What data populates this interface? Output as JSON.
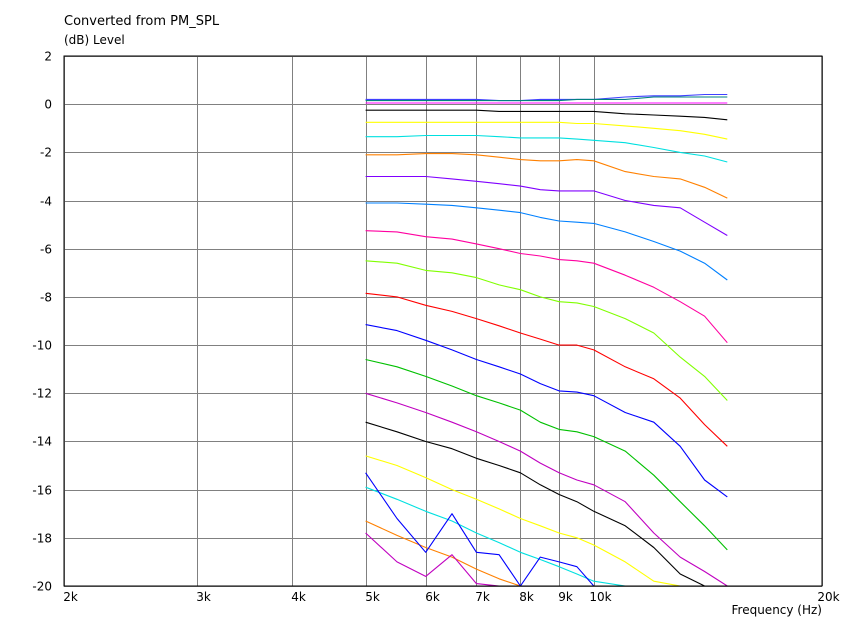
{
  "chart_data": {
    "type": "line",
    "title": "Converted from PM_SPL",
    "ylabel": "(dB)  Level",
    "xlabel": "Frequency  (Hz)",
    "x_scale": "log",
    "xlim": [
      2000,
      20000
    ],
    "ylim": [
      -20,
      2
    ],
    "grid": true,
    "legend": "none",
    "x_ticks": [
      2000,
      3000,
      4000,
      5000,
      6000,
      7000,
      8000,
      9000,
      10000,
      20000
    ],
    "x_tick_labels": [
      "2k",
      "3k",
      "4k",
      "5k",
      "6k",
      "7k",
      "8k",
      "9k",
      "10k",
      "20k"
    ],
    "y_ticks": [
      2,
      0,
      -2,
      -4,
      -6,
      -8,
      -10,
      -12,
      -14,
      -16,
      -18,
      -20
    ],
    "y_tick_labels": [
      "2",
      "0",
      "-2",
      "-4",
      "-6",
      "-8",
      "-10",
      "-12",
      "-14",
      "-16",
      "-18",
      "-20"
    ],
    "x": [
      5000,
      5500,
      6000,
      6500,
      7000,
      7500,
      8000,
      8500,
      9000,
      9500,
      10000,
      11000,
      12000,
      13000,
      14000,
      15000
    ],
    "series": [
      {
        "color": "#4040ff",
        "values": [
          0.2,
          0.2,
          0.2,
          0.2,
          0.2,
          0.15,
          0.15,
          0.2,
          0.2,
          0.2,
          0.2,
          0.3,
          0.35,
          0.35,
          0.4,
          0.4
        ]
      },
      {
        "color": "#008080",
        "values": [
          0.15,
          0.15,
          0.15,
          0.15,
          0.15,
          0.15,
          0.15,
          0.15,
          0.15,
          0.2,
          0.2,
          0.2,
          0.3,
          0.3,
          0.3,
          0.3
        ]
      },
      {
        "color": "#ff00ff",
        "values": [
          0.05,
          0.05,
          0.05,
          0.05,
          0.05,
          0.05,
          0.05,
          0.05,
          0.05,
          0.05,
          0.05,
          0.05,
          0.05,
          0.05,
          0.05,
          0.05
        ]
      },
      {
        "color": "#000000",
        "values": [
          -0.25,
          -0.25,
          -0.25,
          -0.25,
          -0.25,
          -0.3,
          -0.3,
          -0.3,
          -0.3,
          -0.3,
          -0.3,
          -0.4,
          -0.45,
          -0.5,
          -0.55,
          -0.65
        ]
      },
      {
        "color": "#ffff00",
        "values": [
          -0.75,
          -0.75,
          -0.75,
          -0.75,
          -0.75,
          -0.75,
          -0.75,
          -0.75,
          -0.75,
          -0.8,
          -0.8,
          -0.9,
          -1.0,
          -1.1,
          -1.25,
          -1.45
        ]
      },
      {
        "color": "#00e0e0",
        "values": [
          -1.35,
          -1.35,
          -1.3,
          -1.3,
          -1.3,
          -1.35,
          -1.4,
          -1.4,
          -1.4,
          -1.45,
          -1.5,
          -1.6,
          -1.8,
          -2.0,
          -2.15,
          -2.4
        ]
      },
      {
        "color": "#ff8000",
        "values": [
          -2.1,
          -2.1,
          -2.05,
          -2.05,
          -2.1,
          -2.2,
          -2.3,
          -2.35,
          -2.35,
          -2.3,
          -2.35,
          -2.8,
          -3.0,
          -3.1,
          -3.45,
          -3.9
        ]
      },
      {
        "color": "#8000ff",
        "values": [
          -3.0,
          -3.0,
          -3.0,
          -3.1,
          -3.2,
          -3.3,
          -3.4,
          -3.55,
          -3.6,
          -3.6,
          -3.6,
          -4.0,
          -4.2,
          -4.3,
          -4.9,
          -5.45
        ]
      },
      {
        "color": "#0080ff",
        "values": [
          -4.1,
          -4.1,
          -4.15,
          -4.2,
          -4.3,
          -4.4,
          -4.5,
          -4.7,
          -4.85,
          -4.9,
          -4.95,
          -5.3,
          -5.7,
          -6.1,
          -6.6,
          -7.3
        ]
      },
      {
        "color": "#ff00a0",
        "values": [
          -5.25,
          -5.3,
          -5.5,
          -5.6,
          -5.8,
          -6.0,
          -6.2,
          -6.3,
          -6.45,
          -6.5,
          -6.6,
          -7.1,
          -7.6,
          -8.2,
          -8.8,
          -9.9
        ]
      },
      {
        "color": "#80ff00",
        "values": [
          -6.5,
          -6.6,
          -6.9,
          -7.0,
          -7.2,
          -7.5,
          -7.7,
          -8.0,
          -8.2,
          -8.25,
          -8.4,
          -8.9,
          -9.5,
          -10.5,
          -11.3,
          -12.3
        ]
      },
      {
        "color": "#ff0000",
        "values": [
          -7.85,
          -8.0,
          -8.35,
          -8.6,
          -8.9,
          -9.2,
          -9.5,
          -9.75,
          -10.0,
          -10.0,
          -10.2,
          -10.9,
          -11.4,
          -12.2,
          -13.3,
          -14.2
        ]
      },
      {
        "color": "#0000ff",
        "values": [
          -9.15,
          -9.4,
          -9.8,
          -10.2,
          -10.6,
          -10.9,
          -11.2,
          -11.6,
          -11.9,
          -11.95,
          -12.1,
          -12.8,
          -13.2,
          -14.2,
          -15.6,
          -16.3
        ]
      },
      {
        "color": "#00c000",
        "values": [
          -10.6,
          -10.9,
          -11.3,
          -11.7,
          -12.1,
          -12.4,
          -12.7,
          -13.2,
          -13.5,
          -13.6,
          -13.8,
          -14.4,
          -15.4,
          -16.5,
          -17.5,
          -18.5
        ]
      },
      {
        "color": "#c000c0",
        "values": [
          -12.0,
          -12.4,
          -12.8,
          -13.2,
          -13.6,
          -14.0,
          -14.4,
          -14.9,
          -15.3,
          -15.6,
          -15.8,
          -16.5,
          -17.8,
          -18.8,
          -19.4,
          -20.0
        ]
      },
      {
        "color": "#000000",
        "values": [
          -13.2,
          -13.6,
          -14.0,
          -14.3,
          -14.7,
          -15.0,
          -15.3,
          -15.8,
          -16.2,
          -16.5,
          -16.9,
          -17.5,
          -18.4,
          -19.5,
          -20.0,
          -20.0
        ]
      },
      {
        "color": "#ffff00",
        "values": [
          -14.6,
          -15.0,
          -15.5,
          -16.0,
          -16.4,
          -16.8,
          -17.2,
          -17.5,
          -17.8,
          -18.0,
          -18.3,
          -19.0,
          -19.8,
          -20.0,
          -20.0,
          -20.0
        ]
      },
      {
        "color": "#00e0e0",
        "values": [
          -15.9,
          -16.4,
          -16.9,
          -17.3,
          -17.8,
          -18.2,
          -18.6,
          -18.9,
          -19.2,
          -19.5,
          -19.8,
          -20.0,
          -20.0,
          -20.0,
          -20.0,
          -20.0
        ]
      },
      {
        "color": "#ff8000",
        "values": [
          -17.3,
          -17.9,
          -18.4,
          -18.8,
          -19.3,
          -19.7,
          -20.0,
          -20.0,
          -20.0,
          -20.0,
          -20.0,
          -20.0,
          -20.0,
          -20.0,
          -20.0,
          -20.0
        ]
      },
      {
        "color": "#0000ff",
        "values": [
          -15.3,
          -17.2,
          -18.6,
          -17.0,
          -18.6,
          -18.7,
          -20.0,
          -18.8,
          -19.0,
          -19.2,
          -20.0,
          -20.0,
          -20.0,
          -20.0,
          -20.0,
          -20.0
        ]
      },
      {
        "color": "#c000c0",
        "values": [
          -17.8,
          -19.0,
          -19.6,
          -18.7,
          -19.9,
          -20.0,
          -20.0,
          -20.0,
          -20.0,
          -20.0,
          -20.0,
          -20.0,
          -20.0,
          -20.0,
          -20.0,
          -20.0
        ]
      }
    ]
  }
}
